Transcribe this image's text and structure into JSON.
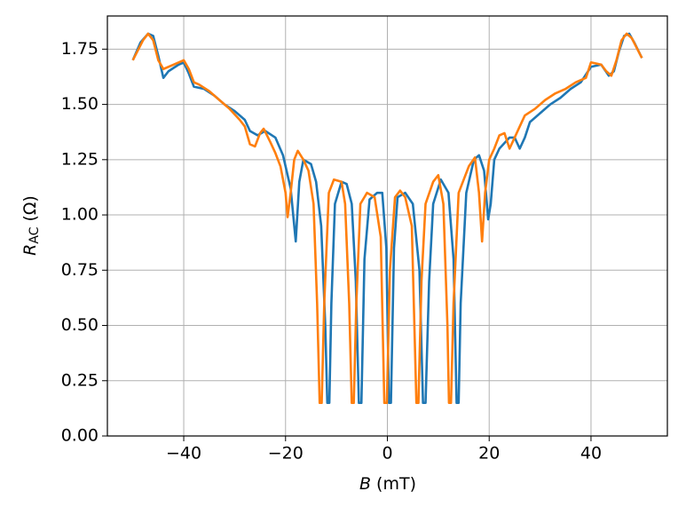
{
  "chart_data": {
    "type": "line",
    "xlabel": {
      "symbol": "B",
      "unit": "(mT)"
    },
    "ylabel": {
      "symbol": "R",
      "subscript": "AC",
      "unit": "(Ω)"
    },
    "xlim": [
      -55,
      55
    ],
    "ylim": [
      0,
      1.9
    ],
    "xticks": [
      {
        "value": -40,
        "label": "−40"
      },
      {
        "value": -20,
        "label": "−20"
      },
      0,
      20,
      40
    ],
    "yticks": [
      {
        "value": 0,
        "label": "0.00"
      },
      {
        "value": 0.25,
        "label": "0.25"
      },
      {
        "value": 0.5,
        "label": "0.50"
      },
      {
        "value": 0.75,
        "label": "0.75"
      },
      {
        "value": 1,
        "label": "1.00"
      },
      {
        "value": 1.25,
        "label": "1.25"
      },
      {
        "value": 1.5,
        "label": "1.50"
      },
      {
        "value": 1.75,
        "label": "1.75"
      }
    ],
    "grid": true,
    "series": [
      {
        "color": "#1f77b4",
        "x": [
          -50,
          -48.5,
          -47,
          -46,
          -45,
          -44,
          -43,
          -41,
          -40,
          -39,
          -38,
          -36,
          -34,
          -32,
          -30,
          -28,
          -27,
          -25.5,
          -24,
          -22,
          -20.5,
          -19,
          -18,
          -17.3,
          -16.5,
          -15,
          -14,
          -13,
          -12.2,
          -11.8,
          -11.4,
          -11,
          -10.3,
          -9,
          -8,
          -7,
          -6.2,
          -5.6,
          -5.1,
          -4.5,
          -3.5,
          -2,
          -1,
          -0.2,
          0.3,
          0.7,
          1.3,
          2,
          3.5,
          5,
          6.3,
          7,
          7.5,
          8.2,
          9,
          10.5,
          12,
          13,
          13.6,
          14,
          14.4,
          15.5,
          17,
          18,
          19,
          19.8,
          20.3,
          21,
          22,
          24,
          25,
          26,
          27,
          28,
          30,
          32,
          34,
          36,
          38,
          40,
          42,
          43.5,
          44.5,
          45.5,
          46.5,
          47.5,
          48.5,
          50
        ],
        "values": [
          1.7,
          1.78,
          1.82,
          1.81,
          1.72,
          1.62,
          1.65,
          1.68,
          1.69,
          1.64,
          1.58,
          1.57,
          1.54,
          1.5,
          1.47,
          1.43,
          1.38,
          1.36,
          1.38,
          1.35,
          1.27,
          1.12,
          0.88,
          1.15,
          1.25,
          1.23,
          1.15,
          0.95,
          0.5,
          0.15,
          0.15,
          0.6,
          1.05,
          1.15,
          1.14,
          1.05,
          0.7,
          0.15,
          0.15,
          0.8,
          1.07,
          1.1,
          1.1,
          0.85,
          0.15,
          0.15,
          0.85,
          1.08,
          1.1,
          1.05,
          0.75,
          0.15,
          0.15,
          0.7,
          1.05,
          1.16,
          1.1,
          0.8,
          0.15,
          0.15,
          0.6,
          1.1,
          1.25,
          1.27,
          1.2,
          0.98,
          1.05,
          1.25,
          1.3,
          1.35,
          1.35,
          1.3,
          1.35,
          1.42,
          1.46,
          1.5,
          1.53,
          1.57,
          1.6,
          1.67,
          1.68,
          1.63,
          1.65,
          1.74,
          1.81,
          1.82,
          1.78,
          1.71
        ]
      },
      {
        "color": "#ff7f0e",
        "x": [
          -50,
          -48,
          -47,
          -46,
          -45,
          -44,
          -42,
          -40,
          -39,
          -38,
          -37,
          -35,
          -33,
          -31,
          -29,
          -28,
          -27,
          -26,
          -25,
          -24.3,
          -23,
          -22,
          -21,
          -20,
          -19.6,
          -19,
          -18.3,
          -17.6,
          -16.5,
          -15.5,
          -14.5,
          -13.8,
          -13.3,
          -12.9,
          -12.4,
          -11.5,
          -10.5,
          -9,
          -8.3,
          -7.5,
          -7,
          -6.6,
          -6.1,
          -5.3,
          -4,
          -2.5,
          -1.3,
          -0.6,
          -0.1,
          0.5,
          1.5,
          2.5,
          3.5,
          4.8,
          5.7,
          6.1,
          6.7,
          7.5,
          9,
          10,
          11,
          11.8,
          12.1,
          12.5,
          13,
          14,
          16,
          17.2,
          18,
          18.6,
          19.2,
          20,
          21,
          22,
          23,
          24,
          25,
          26,
          27,
          29,
          31,
          33,
          35,
          37,
          39,
          40,
          42,
          43,
          44,
          45,
          46,
          47,
          48,
          50
        ],
        "values": [
          1.7,
          1.79,
          1.82,
          1.79,
          1.7,
          1.66,
          1.68,
          1.7,
          1.66,
          1.6,
          1.59,
          1.56,
          1.52,
          1.48,
          1.43,
          1.4,
          1.32,
          1.31,
          1.37,
          1.39,
          1.33,
          1.28,
          1.22,
          1.1,
          0.99,
          1.1,
          1.25,
          1.29,
          1.25,
          1.2,
          1.05,
          0.6,
          0.15,
          0.15,
          0.6,
          1.1,
          1.16,
          1.15,
          1.05,
          0.6,
          0.15,
          0.15,
          0.6,
          1.05,
          1.1,
          1.08,
          0.9,
          0.15,
          0.15,
          0.75,
          1.08,
          1.11,
          1.08,
          0.95,
          0.15,
          0.15,
          0.7,
          1.05,
          1.15,
          1.18,
          1.05,
          0.5,
          0.15,
          0.15,
          0.6,
          1.1,
          1.22,
          1.26,
          1.1,
          0.88,
          1.1,
          1.25,
          1.3,
          1.36,
          1.37,
          1.3,
          1.35,
          1.4,
          1.45,
          1.48,
          1.52,
          1.55,
          1.57,
          1.6,
          1.62,
          1.69,
          1.68,
          1.65,
          1.63,
          1.7,
          1.79,
          1.82,
          1.8,
          1.71
        ]
      }
    ]
  }
}
